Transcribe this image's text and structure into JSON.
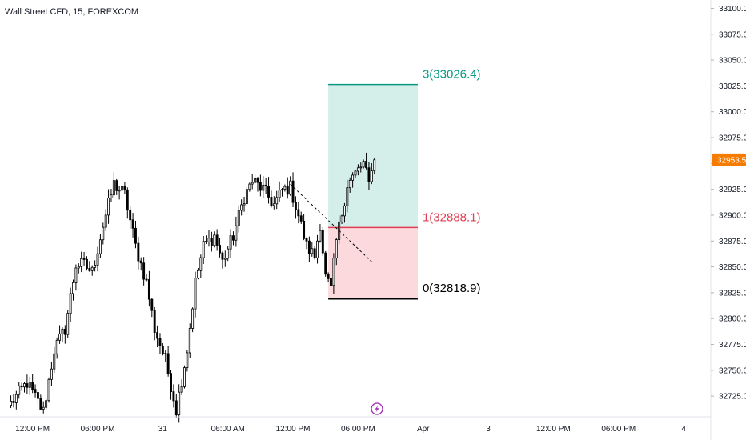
{
  "chart_data": {
    "type": "candlestick",
    "title": "Wall Street CFD, 15, FOREXCOM",
    "ylim": [
      32705,
      33105
    ],
    "yticks": [
      33100,
      33075,
      33050,
      33025,
      33000,
      32975,
      32950,
      32925,
      32900,
      32875,
      32850,
      32825,
      32800,
      32775,
      32750,
      32725
    ],
    "ytick_labels": [
      "33100.0",
      "33075.0",
      "33050.0",
      "33025.0",
      "33000.0",
      "32975.0",
      "32950.0",
      "32925.0",
      "32900.0",
      "32875.0",
      "32850.0",
      "32825.0",
      "32800.0",
      "32775.0",
      "32750.0",
      "32725.0"
    ],
    "xticks": [
      {
        "label": "12:00 PM",
        "bar": 8
      },
      {
        "label": "06:00 PM",
        "bar": 32
      },
      {
        "label": "31",
        "bar": 56
      },
      {
        "label": "06:00 AM",
        "bar": 80
      },
      {
        "label": "12:00 PM",
        "bar": 104
      },
      {
        "label": "06:00 PM",
        "bar": 128
      },
      {
        "label": "Apr",
        "bar": 152
      },
      {
        "label": "3",
        "bar": 176
      },
      {
        "label": "12:00 PM",
        "bar": 200
      },
      {
        "label": "06:00 PM",
        "bar": 224
      },
      {
        "label": "4",
        "bar": 248
      }
    ],
    "xlim_bars": [
      -4,
      258
    ],
    "current_price": 32953.5,
    "current_price_label": "32953.5",
    "up_color": "#ffffff",
    "down_color": "#000000",
    "grid": false,
    "position": {
      "start_bar": 117,
      "end_bar": 150,
      "target": 33026.4,
      "entry": 32888.1,
      "stop": 32818.9,
      "target_label": "3(33026.4)",
      "entry_label": "1(32888.1)",
      "stop_label": "0(32818.9)",
      "target_color": "#089981",
      "entry_color": "#e03e52",
      "stop_color": "#000000",
      "profit_fill": "#d4eee9",
      "loss_fill": "#fbd9dd"
    },
    "trendline": {
      "x1_bar": 103,
      "y1": 32930,
      "x2_bar": 133,
      "y2": 32855,
      "style": "dashed"
    },
    "anchors": [
      {
        "bar": 0,
        "price": 32718
      },
      {
        "bar": 6,
        "price": 32738
      },
      {
        "bar": 12,
        "price": 32710
      },
      {
        "bar": 16,
        "price": 32770
      },
      {
        "bar": 20,
        "price": 32790
      },
      {
        "bar": 24,
        "price": 32852
      },
      {
        "bar": 27,
        "price": 32852
      },
      {
        "bar": 30,
        "price": 32845
      },
      {
        "bar": 34,
        "price": 32890
      },
      {
        "bar": 38,
        "price": 32930
      },
      {
        "bar": 42,
        "price": 32920
      },
      {
        "bar": 46,
        "price": 32870
      },
      {
        "bar": 50,
        "price": 32835
      },
      {
        "bar": 53,
        "price": 32790
      },
      {
        "bar": 57,
        "price": 32760
      },
      {
        "bar": 61,
        "price": 32712
      },
      {
        "bar": 65,
        "price": 32770
      },
      {
        "bar": 68,
        "price": 32835
      },
      {
        "bar": 71,
        "price": 32870
      },
      {
        "bar": 75,
        "price": 32880
      },
      {
        "bar": 78,
        "price": 32855
      },
      {
        "bar": 82,
        "price": 32880
      },
      {
        "bar": 86,
        "price": 32918
      },
      {
        "bar": 89,
        "price": 32933
      },
      {
        "bar": 93,
        "price": 32925
      },
      {
        "bar": 97,
        "price": 32910
      },
      {
        "bar": 100,
        "price": 32924
      },
      {
        "bar": 103,
        "price": 32927
      },
      {
        "bar": 106,
        "price": 32900
      },
      {
        "bar": 109,
        "price": 32870
      },
      {
        "bar": 112,
        "price": 32860
      },
      {
        "bar": 114,
        "price": 32892
      },
      {
        "bar": 116,
        "price": 32840
      },
      {
        "bar": 118,
        "price": 32828
      },
      {
        "bar": 120,
        "price": 32875
      },
      {
        "bar": 122,
        "price": 32902
      },
      {
        "bar": 124,
        "price": 32930
      },
      {
        "bar": 127,
        "price": 32940
      },
      {
        "bar": 130,
        "price": 32950
      },
      {
        "bar": 132,
        "price": 32930
      },
      {
        "bar": 133,
        "price": 32948
      },
      {
        "bar": 134,
        "price": 32953.5
      }
    ]
  },
  "icons": {
    "watermark": "lightning-icon"
  }
}
